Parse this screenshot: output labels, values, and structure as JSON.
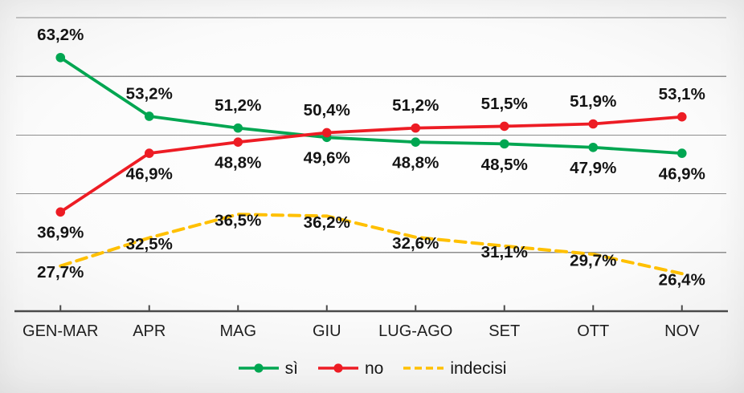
{
  "chart_data": {
    "type": "line",
    "categories": [
      "GEN-MAR",
      "APR",
      "MAG",
      "GIU",
      "LUG-AGO",
      "SET",
      "OTT",
      "NOV"
    ],
    "series": [
      {
        "name": "sì",
        "color": "#00A651",
        "line_style": "solid",
        "marker": true,
        "values": [
          63.2,
          53.2,
          51.2,
          49.6,
          48.8,
          48.5,
          47.9,
          46.9
        ],
        "labels": [
          "63,2%",
          "53,2%",
          "51,2%",
          "49,6%",
          "48,8%",
          "48,5%",
          "47,9%",
          "46,9%"
        ],
        "label_side": [
          "above",
          "above",
          "above",
          "below",
          "below",
          "below",
          "below",
          "below"
        ]
      },
      {
        "name": "no",
        "color": "#ED1C24",
        "line_style": "solid",
        "marker": true,
        "values": [
          36.9,
          46.9,
          48.8,
          50.4,
          51.2,
          51.5,
          51.9,
          53.1
        ],
        "labels": [
          "36,9%",
          "46,9%",
          "48,8%",
          "50,4%",
          "51,2%",
          "51,5%",
          "51,9%",
          "53,1%"
        ],
        "label_side": [
          "below",
          "below",
          "below",
          "above",
          "above",
          "above",
          "above",
          "above"
        ]
      },
      {
        "name": "indecisi",
        "color": "#FFC000",
        "line_style": "dashed",
        "marker": false,
        "values": [
          27.7,
          32.5,
          36.5,
          36.2,
          32.6,
          31.1,
          29.7,
          26.4
        ],
        "labels": [
          "27,7%",
          "32,5%",
          "36,5%",
          "36,2%",
          "32,6%",
          "31,1%",
          "29,7%",
          "26,4%"
        ],
        "label_side": [
          "on",
          "on",
          "on",
          "on",
          "on",
          "on",
          "on",
          "on"
        ]
      }
    ],
    "title": "",
    "xlabel": "",
    "ylabel": "",
    "ylim": [
      20,
      70
    ],
    "grid": true,
    "grid_step": 10,
    "y_tick_labels_visible": false,
    "legend_position": "bottom"
  },
  "style": {
    "grid_color": "#8e8e8e",
    "axis_color": "#4a4a4a",
    "label_color": "#141414"
  }
}
